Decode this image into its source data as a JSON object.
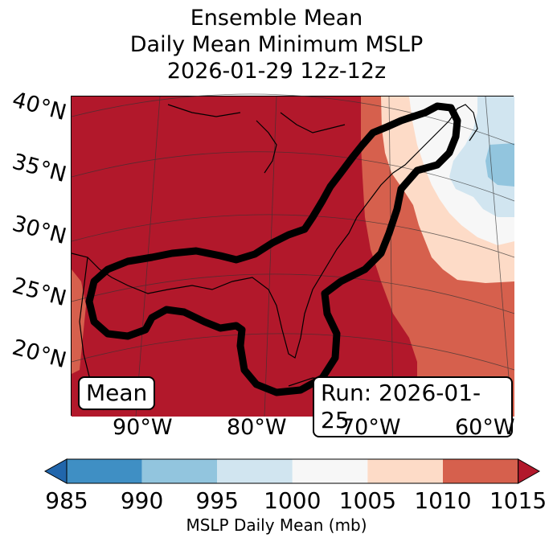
{
  "title": {
    "line1": "Ensemble Mean",
    "line2": "Daily Mean Minimum MSLP",
    "line3": "2026-01-29 12z-12z"
  },
  "axes": {
    "lat_labels": [
      "40°N",
      "35°N",
      "30°N",
      "25°N",
      "20°N"
    ],
    "lon_labels": [
      "90°W",
      "80°W",
      "70°W",
      "60°W"
    ]
  },
  "badges": {
    "left": "Mean",
    "right": "Run: 2026-01-25"
  },
  "colorbar": {
    "ticks": [
      "985",
      "990",
      "995",
      "1000",
      "1005",
      "1010",
      "1015"
    ],
    "label": "MSLP Daily Mean (mb)",
    "colors": [
      "#2166ac",
      "#3f8fc4",
      "#92c5de",
      "#d1e5f0",
      "#f7f7f7",
      "#fddbc7",
      "#d6604d",
      "#b2182b"
    ]
  },
  "field_colors": {
    "gt1010": "#b2182b",
    "c1005_1010": "#d6604d",
    "c1000_1005": "#fddbc7",
    "c995_1000": "#f7f7f7",
    "c990_995": "#d1e5f0",
    "c985_990": "#92c5de"
  }
}
